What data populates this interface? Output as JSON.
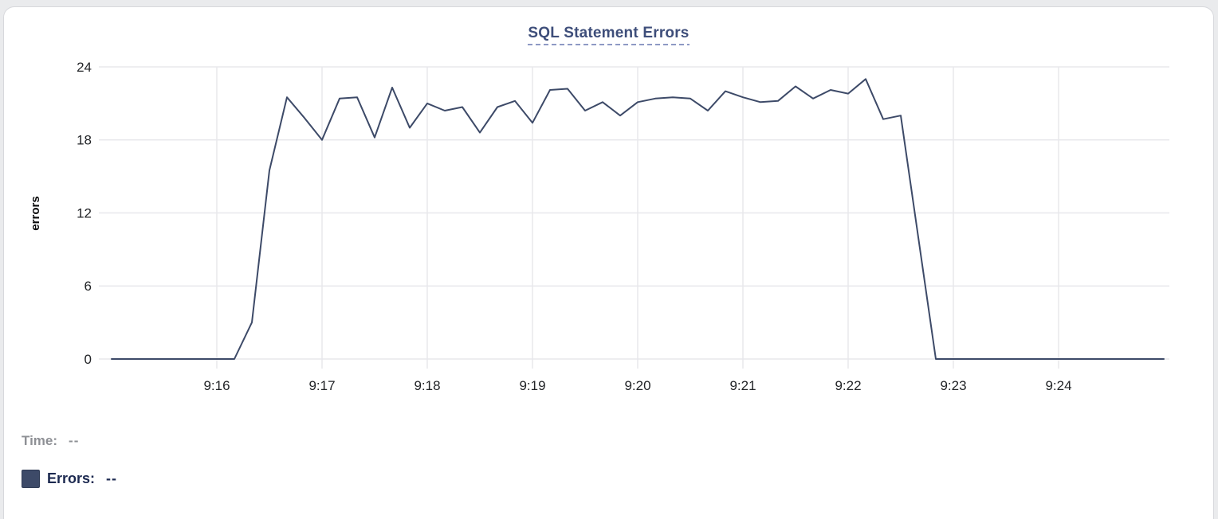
{
  "chart": {
    "title": "SQL Statement Errors",
    "y_axis_label": "errors"
  },
  "tooltip": {
    "time_label": "Time:",
    "time_value": "--",
    "errors_label": "Errors:",
    "errors_value": "--"
  },
  "colors": {
    "title": "#3e4e7a",
    "title_underline": "#8e99c4",
    "line": "#3d4a68",
    "grid": "#e8e8ec",
    "axis_text": "#232528",
    "axis_label": "#0b0b0c",
    "time_text": "#8e9095",
    "errors_text": "#1c2950",
    "swatch": "#3d4a68",
    "page_background": "#eaebed",
    "card_background": "#ffffff",
    "card_border": "#d7d8dc"
  },
  "chart_data": {
    "type": "line",
    "title": "SQL Statement Errors",
    "xlabel": "",
    "ylabel": "errors",
    "ylim": [
      0,
      24
    ],
    "y_ticks": [
      0,
      6,
      12,
      18,
      24
    ],
    "x_tick_labels": [
      "9:16",
      "9:17",
      "9:18",
      "9:19",
      "9:20",
      "9:21",
      "9:22",
      "9:23",
      "9:24"
    ],
    "x_range": [
      "9:15:00",
      "9:25:00"
    ],
    "interval_seconds": 10,
    "grid": true,
    "legend_position": "bottom-left",
    "x": [
      "9:15:00",
      "9:15:10",
      "9:15:20",
      "9:15:30",
      "9:15:40",
      "9:15:50",
      "9:16:00",
      "9:16:10",
      "9:16:20",
      "9:16:30",
      "9:16:40",
      "9:16:50",
      "9:17:00",
      "9:17:10",
      "9:17:20",
      "9:17:30",
      "9:17:40",
      "9:17:50",
      "9:18:00",
      "9:18:10",
      "9:18:20",
      "9:18:30",
      "9:18:40",
      "9:18:50",
      "9:19:00",
      "9:19:10",
      "9:19:20",
      "9:19:30",
      "9:19:40",
      "9:19:50",
      "9:20:00",
      "9:20:10",
      "9:20:20",
      "9:20:30",
      "9:20:40",
      "9:20:50",
      "9:21:00",
      "9:21:10",
      "9:21:20",
      "9:21:30",
      "9:21:40",
      "9:21:50",
      "9:22:00",
      "9:22:10",
      "9:22:20",
      "9:22:30",
      "9:22:40",
      "9:22:50",
      "9:23:00",
      "9:23:10",
      "9:23:20",
      "9:23:30",
      "9:23:40",
      "9:23:50",
      "9:24:00",
      "9:24:10",
      "9:24:20",
      "9:24:30",
      "9:24:40",
      "9:24:50",
      "9:25:00"
    ],
    "series": [
      {
        "name": "Errors",
        "values": [
          0,
          0,
          0,
          0,
          0,
          0,
          0,
          0,
          3,
          15.5,
          21.5,
          19.8,
          18,
          21.4,
          21.5,
          18.2,
          22.3,
          19,
          21,
          20.4,
          20.7,
          18.6,
          20.7,
          21.2,
          19.4,
          22.1,
          22.2,
          20.4,
          21.1,
          20,
          21.1,
          21.4,
          21.5,
          21.4,
          20.4,
          22,
          21.5,
          21.1,
          21.2,
          22.4,
          21.4,
          22.1,
          21.8,
          23,
          19.7,
          20,
          10,
          0,
          0,
          0,
          0,
          0,
          0,
          0,
          0,
          0,
          0,
          0,
          0,
          0,
          0
        ]
      }
    ]
  }
}
